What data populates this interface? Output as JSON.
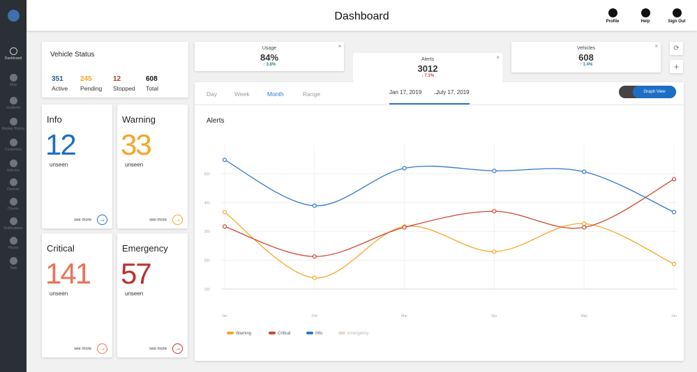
{
  "header": {
    "title": "Dashboard",
    "actions": [
      "Profile",
      "Help",
      "Sign Out"
    ]
  },
  "sidebar": {
    "items": [
      "Dashboard",
      "Map",
      "Incidents",
      "Replay History",
      "Customers",
      "Vehicles",
      "Devices",
      "Drivers",
      "Notifications",
      "Places",
      "Tags"
    ]
  },
  "vehicle_status": {
    "title": "Vehicle Status",
    "stats": [
      {
        "value": 351,
        "label": "Active",
        "color": "#2a5b8c"
      },
      {
        "value": 245,
        "label": "Pending",
        "color": "#f5a623"
      },
      {
        "value": 12,
        "label": "Stopped",
        "color": "#c0392b"
      },
      {
        "value": 608,
        "label": "Total",
        "color": "#111111"
      }
    ]
  },
  "alert_cards": [
    {
      "title": "Info",
      "count": 12,
      "sub": "unseen",
      "link": "see more",
      "color": "#1e6fc4"
    },
    {
      "title": "Warning",
      "count": 33,
      "sub": "unseen",
      "link": "see more",
      "color": "#f5a623"
    },
    {
      "title": "Critical",
      "count": 141,
      "sub": "unseen",
      "link": "see more",
      "color": "#e8735a"
    },
    {
      "title": "Emergency",
      "count": 57,
      "sub": "unseen",
      "link": "see more",
      "color": "#b83232"
    }
  ],
  "kpi_tabs": [
    {
      "label": "Usage",
      "value": "84%",
      "change": "↑ 3.8%",
      "trend": "up"
    },
    {
      "label": "Alerts",
      "value": "3012",
      "change": "↓ 7.1%",
      "trend": "down"
    },
    {
      "label": "Vehicles",
      "value": "608",
      "change": "↑ 1.4%",
      "trend": "up"
    }
  ],
  "panel": {
    "ranges": [
      "Day",
      "Week",
      "Month",
      "Range"
    ],
    "date_from": "Jan 17, 2019",
    "date_to": "July 17, 2019",
    "view": "Graph View"
  },
  "chart_data": {
    "type": "line",
    "title": "Alerts",
    "categories": [
      "Jan",
      "Feb",
      "Mar",
      "Apr",
      "May",
      "Jun"
    ],
    "series": [
      {
        "name": "Warning",
        "color": "#f5a623",
        "values": [
          367,
          139,
          317,
          230,
          327,
          187
        ]
      },
      {
        "name": "Critical",
        "color": "#d0452f",
        "values": [
          317,
          213,
          314,
          370,
          314,
          481
        ]
      },
      {
        "name": "Info",
        "color": "#2e78c8",
        "values": [
          548,
          389,
          519,
          510,
          507,
          367
        ]
      },
      {
        "name": "Emergency",
        "color": "#e89a9a",
        "values": [
          null,
          null,
          null,
          null,
          null,
          null
        ],
        "visible": false
      }
    ],
    "ylim": [
      100,
      600
    ],
    "yticks": [
      100,
      200,
      300,
      400,
      500
    ],
    "grid": true
  }
}
